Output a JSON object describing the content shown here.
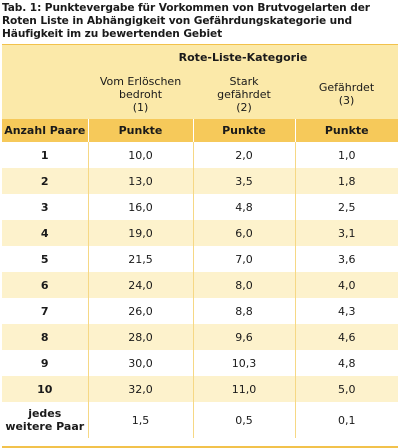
{
  "caption": "Tab. 1: Punktevergabe für Vorkommen von Brutvogelarten der Roten Liste in Abhängigkeit von Gefährdungskategorie und Häufigkeit im zu bewertenden Gebiet",
  "header": {
    "group_title": "Rote-Liste-Kategorie",
    "categories": [
      {
        "line1": "Vom Erlöschen",
        "line2": "bedroht",
        "code": "(1)"
      },
      {
        "line1": "Stark",
        "line2": "gefährdet",
        "code": "(2)"
      },
      {
        "line1": "Gefährdet",
        "line2": "",
        "code": "(3)"
      }
    ],
    "row_label": "Anzahl Paare",
    "unit": "Punkte"
  },
  "rows": [
    {
      "pairs": "1",
      "values": [
        "10,0",
        "2,0",
        "1,0"
      ]
    },
    {
      "pairs": "2",
      "values": [
        "13,0",
        "3,5",
        "1,8"
      ]
    },
    {
      "pairs": "3",
      "values": [
        "16,0",
        "4,8",
        "2,5"
      ]
    },
    {
      "pairs": "4",
      "values": [
        "19,0",
        "6,0",
        "3,1"
      ]
    },
    {
      "pairs": "5",
      "values": [
        "21,5",
        "7,0",
        "3,6"
      ]
    },
    {
      "pairs": "6",
      "values": [
        "24,0",
        "8,0",
        "4,0"
      ]
    },
    {
      "pairs": "7",
      "values": [
        "26,0",
        "8,8",
        "4,3"
      ]
    },
    {
      "pairs": "8",
      "values": [
        "28,0",
        "9,6",
        "4,6"
      ]
    },
    {
      "pairs": "9",
      "values": [
        "30,0",
        "10,3",
        "4,8"
      ]
    },
    {
      "pairs": "10",
      "values": [
        "32,0",
        "11,0",
        "5,0"
      ]
    }
  ],
  "last_row": {
    "pairs_line1": "jedes",
    "pairs_line2": "weitere Paar",
    "values": [
      "1,5",
      "0,5",
      "0,1"
    ]
  },
  "colors": {
    "header_light": "#fbe9a9",
    "header_dark": "#f6c95a",
    "row_alt": "#fdf2cc"
  }
}
